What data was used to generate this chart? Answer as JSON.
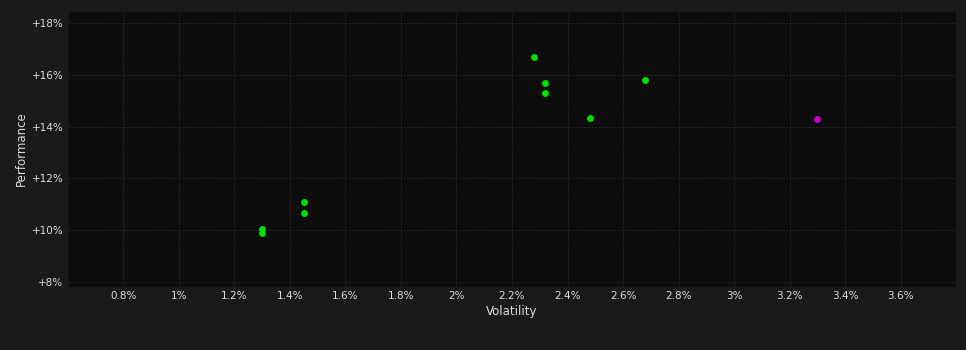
{
  "background_color": "#1a1a1a",
  "plot_bg_color": "#0d0d0d",
  "text_color": "#dddddd",
  "xlabel": "Volatility",
  "ylabel": "Performance",
  "xlim": [
    0.006,
    0.038
  ],
  "ylim": [
    0.078,
    0.185
  ],
  "xticks": [
    0.008,
    0.01,
    0.012,
    0.014,
    0.016,
    0.018,
    0.02,
    0.022,
    0.024,
    0.026,
    0.028,
    0.03,
    0.032,
    0.034,
    0.036
  ],
  "xtick_labels": [
    "0.8%",
    "1%",
    "1.2%",
    "1.4%",
    "1.6%",
    "1.8%",
    "2%",
    "2.2%",
    "2.4%",
    "2.6%",
    "2.8%",
    "3%",
    "3.2%",
    "3.4%",
    "3.6%"
  ],
  "yticks": [
    0.08,
    0.1,
    0.12,
    0.14,
    0.16,
    0.18
  ],
  "ytick_labels": [
    "+8%",
    "+10%",
    "+12%",
    "+14%",
    "+16%",
    "+18%"
  ],
  "green_points_xy": [
    [
      0.013,
      0.1005
    ],
    [
      0.013,
      0.099
    ],
    [
      0.0145,
      0.111
    ],
    [
      0.0145,
      0.1065
    ],
    [
      0.0228,
      0.167
    ],
    [
      0.0232,
      0.157
    ],
    [
      0.0232,
      0.153
    ],
    [
      0.0248,
      0.1435
    ],
    [
      0.0268,
      0.158
    ]
  ],
  "magenta_points_xy": [
    [
      0.033,
      0.143
    ]
  ],
  "green_color": "#00dd00",
  "magenta_color": "#cc00cc",
  "marker_size": 5,
  "fig_width": 9.66,
  "fig_height": 3.5,
  "dpi": 100
}
